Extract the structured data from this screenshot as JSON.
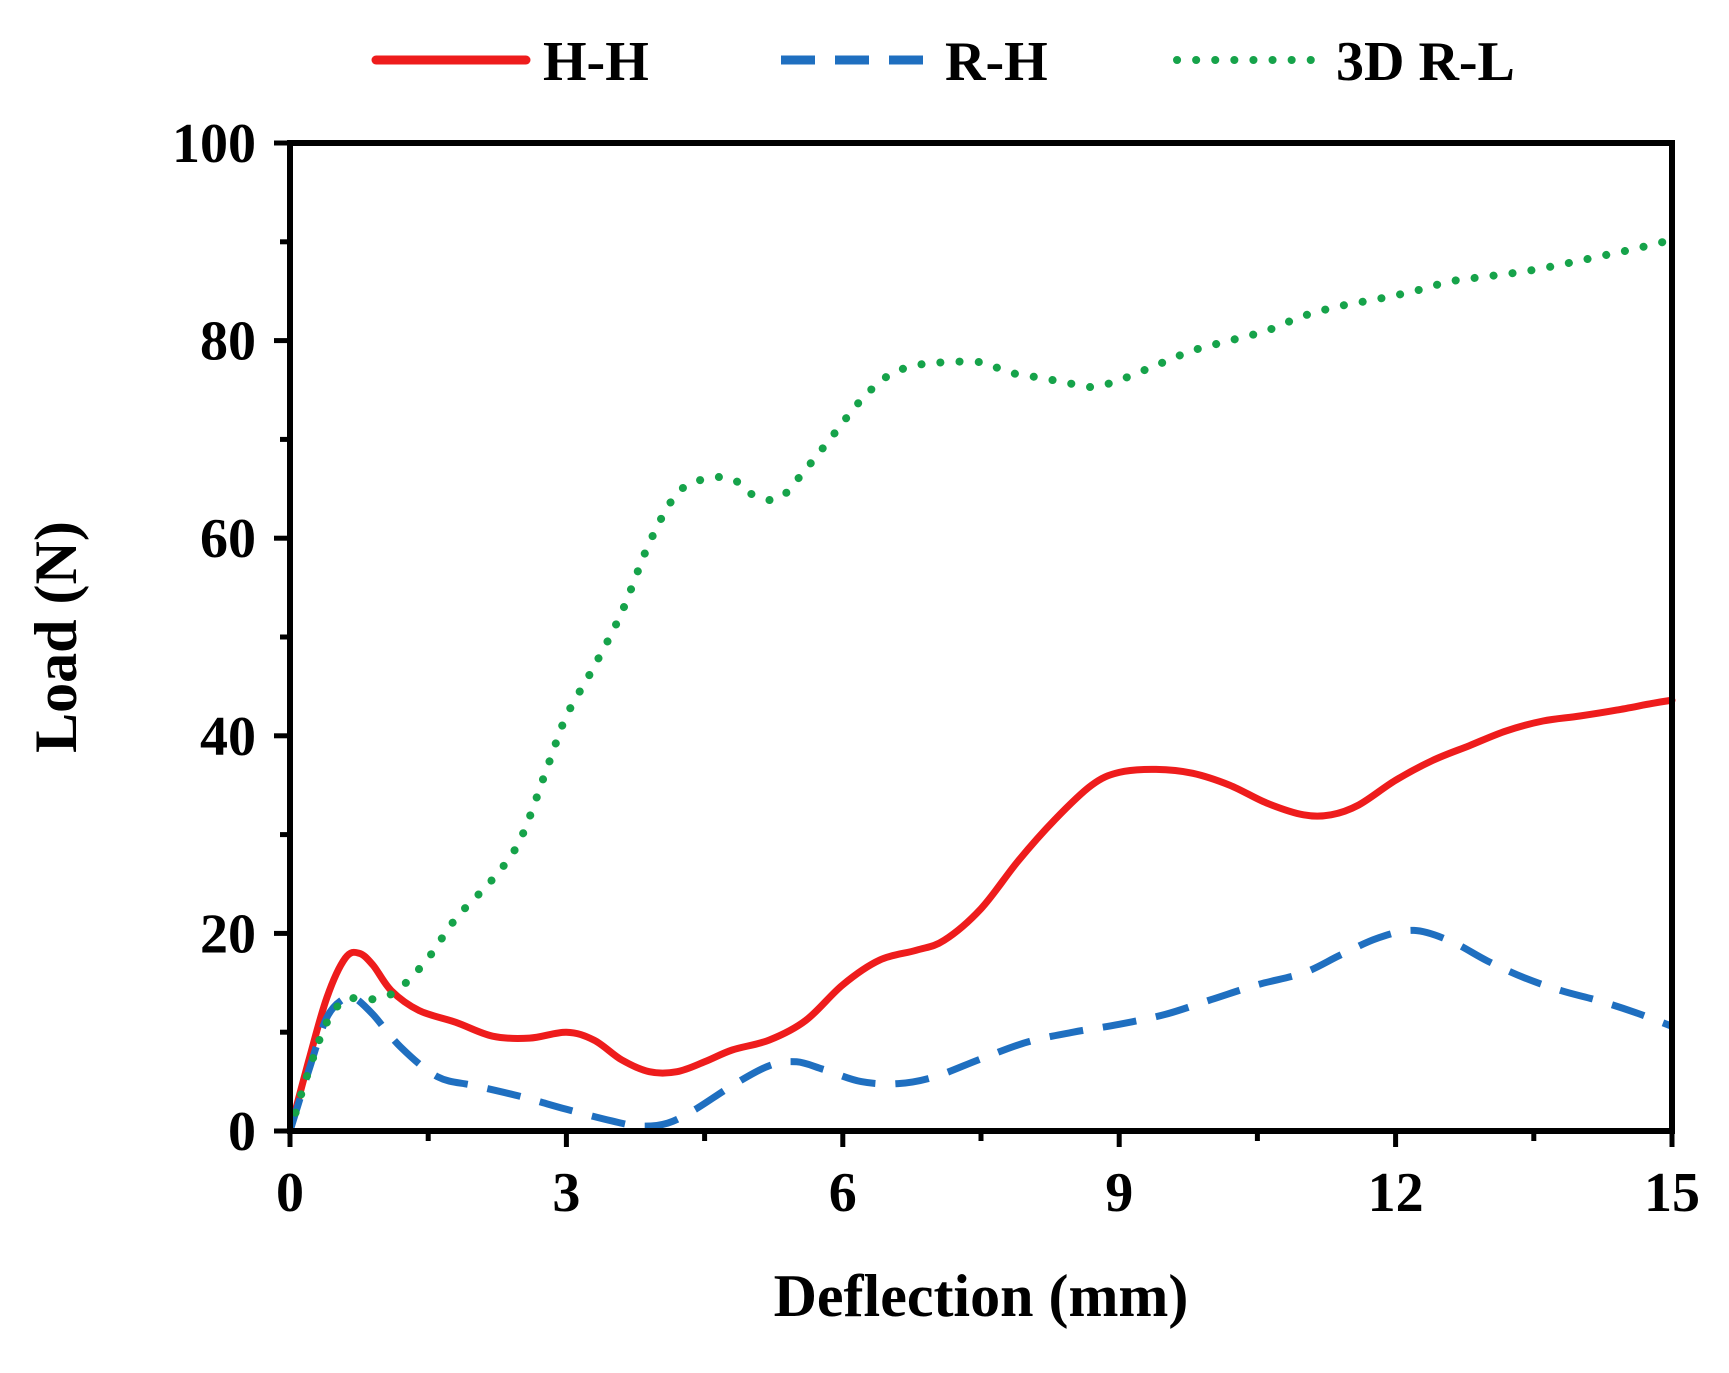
{
  "chart_data": {
    "type": "line",
    "title": "",
    "xlabel": "Deflection (mm)",
    "ylabel": "Load (N)",
    "xlim": [
      0,
      15
    ],
    "ylim": [
      0,
      100
    ],
    "x_ticks": [
      0,
      3,
      6,
      9,
      12,
      15
    ],
    "x_tick_labels": [
      "0",
      "3",
      "6",
      "9",
      "12",
      "15"
    ],
    "y_ticks": [
      0,
      20,
      40,
      60,
      80,
      100
    ],
    "y_tick_labels": [
      "0",
      "20",
      "40",
      "60",
      "80",
      "100"
    ],
    "grid": false,
    "legend_position": "top",
    "series": [
      {
        "name": "H-H",
        "color": "#ee1c1c",
        "style": "solid",
        "x": [
          0,
          0.2,
          0.4,
          0.6,
          0.75,
          0.9,
          1.1,
          1.4,
          1.8,
          2.2,
          2.6,
          3.0,
          3.3,
          3.6,
          3.9,
          4.2,
          4.5,
          4.8,
          5.2,
          5.6,
          6.0,
          6.4,
          6.8,
          7.1,
          7.5,
          7.9,
          8.3,
          8.7,
          9.0,
          9.4,
          9.8,
          10.2,
          10.6,
          11.0,
          11.3,
          11.6,
          12.0,
          12.4,
          12.8,
          13.2,
          13.6,
          14.0,
          14.4,
          14.8,
          15.0
        ],
        "y": [
          0,
          7,
          13.5,
          17.5,
          18.0,
          16.8,
          14.2,
          12.2,
          11.0,
          9.6,
          9.4,
          10.0,
          9.2,
          7.2,
          6.0,
          6.0,
          7.0,
          8.2,
          9.2,
          11.2,
          14.8,
          17.3,
          18.3,
          19.3,
          22.5,
          27.3,
          31.5,
          35.0,
          36.3,
          36.6,
          36.2,
          35.0,
          33.2,
          32.0,
          32.0,
          33.0,
          35.5,
          37.5,
          39.0,
          40.5,
          41.5,
          42.0,
          42.6,
          43.3,
          43.6
        ]
      },
      {
        "name": "R-H",
        "color": "#1f6fc0",
        "style": "dashed",
        "x": [
          0,
          0.2,
          0.4,
          0.6,
          0.7,
          0.9,
          1.2,
          1.6,
          2.0,
          2.5,
          3.0,
          3.5,
          3.8,
          4.1,
          4.4,
          4.8,
          5.2,
          5.5,
          5.8,
          6.2,
          6.6,
          7.0,
          7.5,
          8.0,
          8.5,
          9.0,
          9.5,
          10.0,
          10.5,
          11.0,
          11.4,
          11.8,
          12.2,
          12.6,
          13.0,
          13.4,
          13.8,
          14.2,
          14.6,
          15.0
        ],
        "y": [
          0,
          6,
          11.5,
          13.5,
          13.5,
          11.8,
          8.5,
          5.5,
          4.6,
          3.5,
          2.2,
          1.0,
          0.5,
          0.8,
          2.2,
          4.6,
          6.6,
          7.0,
          6.2,
          5.0,
          4.8,
          5.5,
          7.3,
          9.0,
          10.0,
          10.8,
          11.8,
          13.3,
          14.8,
          16.0,
          17.8,
          19.5,
          20.3,
          19.2,
          17.2,
          15.5,
          14.2,
          13.2,
          12.0,
          10.6
        ]
      },
      {
        "name": "3D R-L",
        "color": "#16a34a",
        "style": "dotted",
        "x": [
          0,
          0.2,
          0.4,
          0.6,
          0.8,
          1.0,
          1.2,
          1.5,
          1.8,
          2.2,
          2.5,
          2.8,
          3.0,
          3.3,
          3.6,
          3.9,
          4.2,
          4.5,
          4.8,
          5.0,
          5.3,
          5.6,
          5.9,
          6.2,
          6.5,
          6.8,
          7.1,
          7.5,
          7.8,
          8.1,
          8.4,
          8.7,
          9.0,
          9.4,
          9.8,
          10.2,
          10.6,
          11.0,
          11.4,
          11.8,
          12.2,
          12.6,
          13.0,
          13.4,
          13.8,
          14.2,
          14.6,
          15.0
        ],
        "y": [
          0,
          6,
          11,
          13.3,
          13.3,
          13.5,
          14.5,
          17.5,
          21.5,
          25.5,
          29.5,
          37.0,
          42.0,
          47.0,
          52.5,
          59.5,
          64.5,
          66.0,
          66.0,
          64.5,
          64.0,
          67.0,
          70.5,
          74.0,
          76.5,
          77.5,
          77.8,
          77.8,
          76.8,
          76.3,
          75.8,
          75.3,
          76.0,
          77.5,
          79.0,
          80.0,
          81.0,
          82.5,
          83.5,
          84.2,
          85.0,
          86.0,
          86.5,
          87.0,
          87.7,
          88.5,
          89.3,
          90.2
        ]
      }
    ]
  }
}
